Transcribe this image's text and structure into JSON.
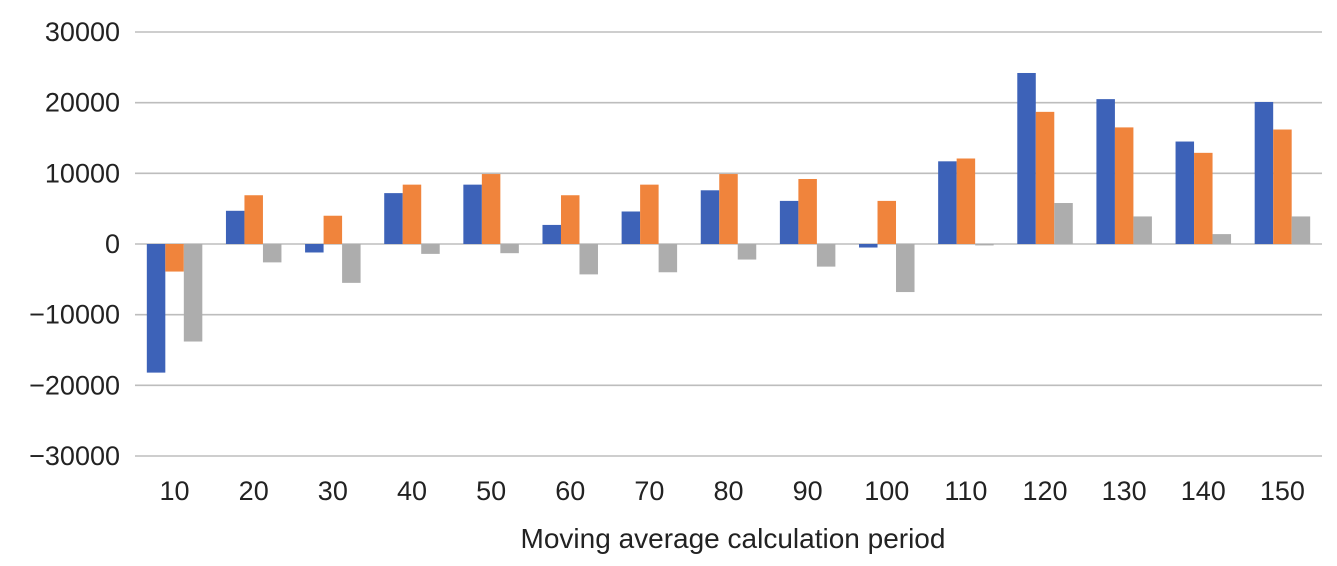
{
  "chart_data": {
    "type": "bar",
    "title": "",
    "xlabel": "Moving average calculation period",
    "ylabel": "",
    "ylim": [
      -30000,
      30000
    ],
    "yticks": [
      30000,
      20000,
      10000,
      0,
      -10000,
      -20000,
      -30000
    ],
    "grid": true,
    "legend": "none",
    "categories": [
      "10",
      "20",
      "30",
      "40",
      "50",
      "60",
      "70",
      "80",
      "90",
      "100",
      "110",
      "120",
      "130",
      "140",
      "150"
    ],
    "series": [
      {
        "color": "#3d62b8",
        "values": [
          -18200,
          4700,
          -1200,
          7200,
          8400,
          2700,
          4600,
          7600,
          6100,
          -500,
          11700,
          24200,
          20500,
          14500,
          20100
        ]
      },
      {
        "color": "#f0843c",
        "values": [
          -3900,
          6900,
          4000,
          8400,
          9900,
          6900,
          8400,
          9900,
          9200,
          6100,
          12100,
          18700,
          16500,
          12900,
          16200
        ]
      },
      {
        "color": "#adadad",
        "values": [
          -13800,
          -2600,
          -5500,
          -1400,
          -1300,
          -4300,
          -4000,
          -2200,
          -3200,
          -6800,
          -200,
          5800,
          3900,
          1400,
          3900
        ]
      }
    ]
  }
}
